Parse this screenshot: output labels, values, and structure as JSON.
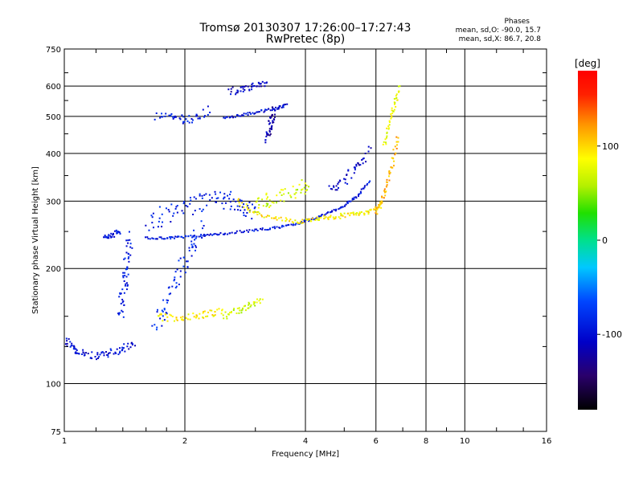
{
  "chart_data": {
    "type": "scatter",
    "title": "Tromsø 20130307 17:26:00–17:27:43",
    "subtitle": "RwPretec (8p)",
    "xlabel": "Frequency [MHz]",
    "ylabel": "Stationary phase Virtual Height [km]",
    "x_scale": "log",
    "y_scale": "log",
    "xlim": [
      1,
      16
    ],
    "ylim": [
      75,
      750
    ],
    "x_ticks": [
      1,
      2,
      4,
      6,
      8,
      10,
      16
    ],
    "y_ticks": [
      75,
      100,
      200,
      300,
      400,
      500,
      600,
      750
    ],
    "grid": true,
    "phase_stats": {
      "header": "Phases",
      "line_o": "mean, sd,O: -90.0, 15.7",
      "line_x": "mean, sd,X: 86.7, 20.8"
    },
    "colorbar": {
      "title": "[deg]",
      "range": [
        -180,
        180
      ],
      "ticks": [
        100,
        0,
        -100
      ]
    },
    "traces": [
      {
        "name": "",
        "x": [
          1.0,
          1.05,
          1.1,
          1.2,
          1.3,
          1.4,
          1.5
        ],
        "y": [
          130,
          125,
          120,
          118,
          120,
          123,
          128
        ],
        "phase": -100,
        "spread": 0.03
      },
      {
        "name": "",
        "x": [
          1.38,
          1.4,
          1.42,
          1.44,
          1.46
        ],
        "y": [
          150,
          170,
          190,
          215,
          245
        ],
        "phase": -90,
        "spread": 0.04
      },
      {
        "name": "",
        "x": [
          1.25,
          1.32,
          1.38
        ],
        "y": [
          240,
          245,
          250
        ],
        "phase": -95,
        "spread": 0.02
      },
      {
        "name": "",
        "x": [
          1.6,
          1.8,
          2.0,
          2.3,
          2.6,
          3.0,
          3.4,
          3.8,
          4.2,
          4.6,
          5.0,
          5.4,
          5.8
        ],
        "y": [
          240,
          240,
          242,
          244,
          248,
          252,
          256,
          262,
          270,
          280,
          292,
          310,
          340
        ],
        "phase": -95,
        "spread": 0.01
      },
      {
        "name": "",
        "x": [
          1.6,
          1.8,
          2.0,
          2.2,
          2.4,
          2.6,
          2.8,
          3.0
        ],
        "y": [
          255,
          275,
          290,
          300,
          305,
          300,
          290,
          280
        ],
        "phase": -90,
        "spread": 0.08
      },
      {
        "name": "",
        "x": [
          1.7,
          1.8,
          1.9,
          2.0,
          2.1,
          2.2
        ],
        "y": [
          140,
          160,
          185,
          210,
          235,
          260
        ],
        "phase": -85,
        "spread": 0.06
      },
      {
        "name": "",
        "x": [
          1.7,
          1.9,
          2.1,
          2.3,
          2.5
        ],
        "y": [
          150,
          148,
          150,
          152,
          155
        ],
        "phase": 90,
        "spread": 0.03
      },
      {
        "name": "",
        "x": [
          2.5,
          2.7,
          2.9,
          3.1
        ],
        "y": [
          150,
          155,
          160,
          165
        ],
        "phase": 70,
        "spread": 0.03
      },
      {
        "name": "",
        "x": [
          2.7,
          3.0,
          3.4,
          3.8,
          4.2,
          4.6,
          5.0,
          5.4,
          5.8,
          6.2
        ],
        "y": [
          300,
          280,
          270,
          265,
          268,
          272,
          275,
          278,
          282,
          290
        ],
        "phase": 90,
        "spread": 0.02
      },
      {
        "name": "",
        "x": [
          3.0,
          3.2,
          3.5,
          3.8,
          4.1
        ],
        "y": [
          290,
          300,
          310,
          320,
          330
        ],
        "phase": 70,
        "spread": 0.06
      },
      {
        "name": "",
        "x": [
          6.0,
          6.2,
          6.4,
          6.6,
          6.8
        ],
        "y": [
          280,
          300,
          330,
          380,
          450
        ],
        "phase": 110,
        "spread": 0.02
      },
      {
        "name": "",
        "x": [
          6.3,
          6.5,
          6.7,
          6.85
        ],
        "y": [
          420,
          480,
          540,
          600
        ],
        "phase": 80,
        "spread": 0.02
      },
      {
        "name": "",
        "x": [
          2.5,
          2.8,
          3.1,
          3.4,
          3.6
        ],
        "y": [
          495,
          505,
          515,
          525,
          535
        ],
        "phase": -100,
        "spread": 0.01
      },
      {
        "name": "",
        "x": [
          1.7,
          1.9,
          2.1,
          2.3
        ],
        "y": [
          500,
          490,
          495,
          520
        ],
        "phase": -90,
        "spread": 0.04
      },
      {
        "name": "",
        "x": [
          2.6,
          2.8,
          3.0,
          3.2
        ],
        "y": [
          580,
          590,
          605,
          610
        ],
        "phase": -110,
        "spread": 0.03
      },
      {
        "name": "",
        "x": [
          3.2,
          3.25,
          3.3,
          3.35
        ],
        "y": [
          430,
          460,
          490,
          530
        ],
        "phase": -120,
        "spread": 0.03
      },
      {
        "name": "",
        "x": [
          4.6,
          5.0,
          5.4,
          5.8
        ],
        "y": [
          320,
          340,
          370,
          410
        ],
        "phase": -110,
        "spread": 0.04
      }
    ]
  }
}
